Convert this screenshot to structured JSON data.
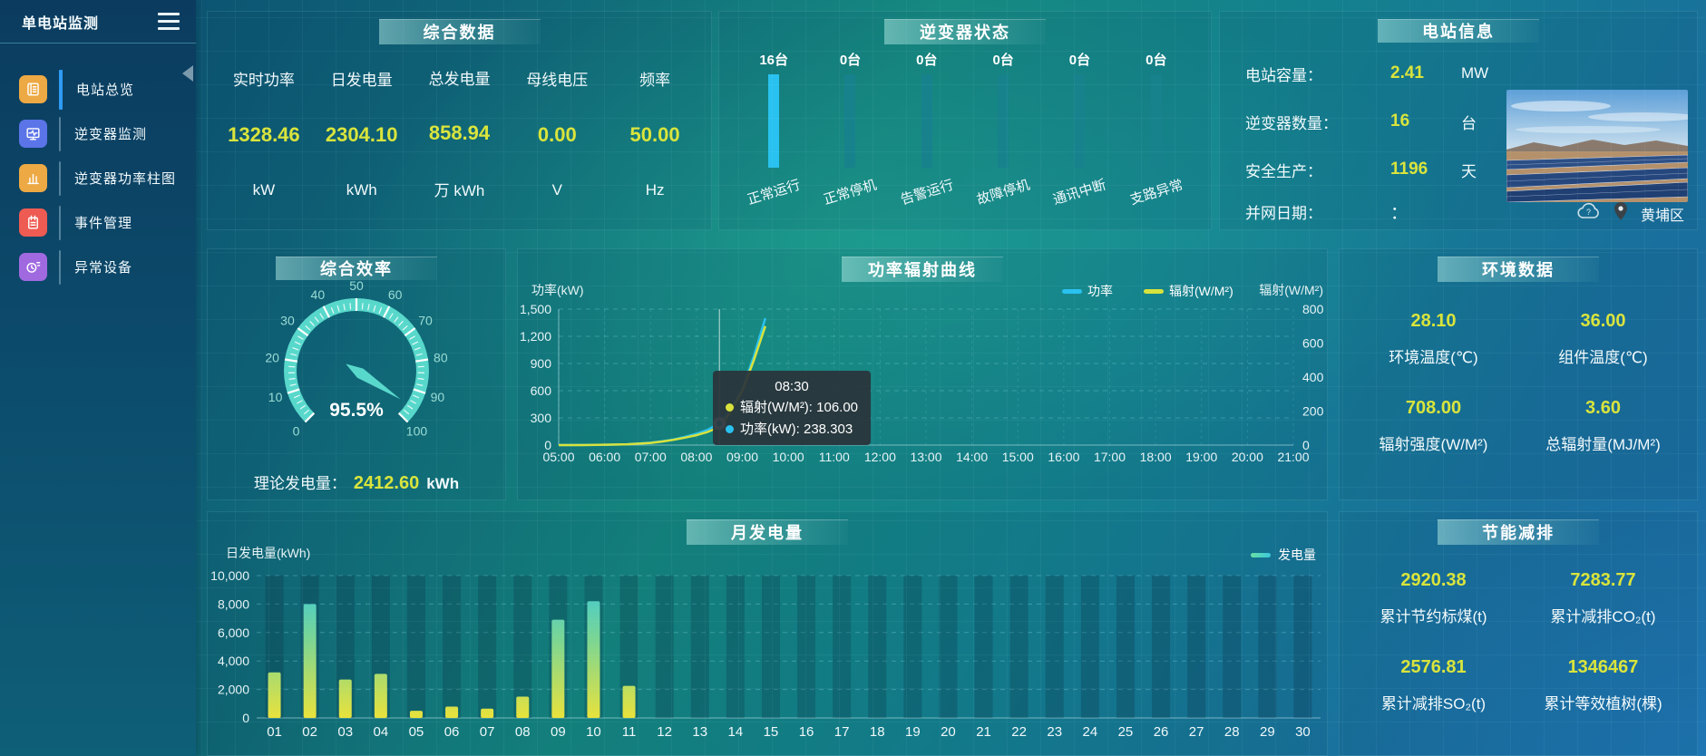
{
  "app": {
    "title": "单电站监测"
  },
  "sidebar": {
    "items": [
      {
        "label": "电站总览",
        "icon": "journal-icon",
        "icon_color": "#eda943",
        "active": true
      },
      {
        "label": "逆变器监测",
        "icon": "monitor-wave-icon",
        "icon_color": "#5b74e8",
        "active": false
      },
      {
        "label": "逆变器功率柱图",
        "icon": "bar-chart-icon",
        "icon_color": "#eda943",
        "active": false
      },
      {
        "label": "事件管理",
        "icon": "notepad-icon",
        "icon_color": "#ee5b52",
        "active": false
      },
      {
        "label": "异常设备",
        "icon": "device-alert-icon",
        "icon_color": "#a069e0",
        "active": false
      }
    ]
  },
  "panels": {
    "overview": {
      "title": "综合数据",
      "metrics": [
        {
          "label": "实时功率",
          "value": "1328.46",
          "unit": "kW"
        },
        {
          "label": "日发电量",
          "value": "2304.10",
          "unit": "kWh"
        },
        {
          "label": "总发电量",
          "value": "858.94",
          "unit": "万 kWh"
        },
        {
          "label": "母线电压",
          "value": "0.00",
          "unit": "V"
        },
        {
          "label": "频率",
          "value": "50.00",
          "unit": "Hz"
        }
      ]
    },
    "inverter_status": {
      "title": "逆变器状态"
    },
    "station_info": {
      "title": "电站信息",
      "rows": [
        {
          "label": "电站容量：",
          "value": "2.41",
          "unit": "MW"
        },
        {
          "label": "逆变器数量：",
          "value": "16",
          "unit": "台"
        },
        {
          "label": "安全生产：",
          "value": "1196",
          "unit": "天"
        }
      ],
      "grid_date": {
        "label": "并网日期：",
        "value": "："
      },
      "weather_icon": "cloud-question-icon",
      "location_icon": "map-pin-icon",
      "location": "黄埔区"
    },
    "efficiency": {
      "title": "综合效率",
      "gauge_value_label": "95.5%",
      "theory_label": "理论发电量：",
      "theory_value": "2412.60",
      "theory_unit": "kWh"
    },
    "power_radiation": {
      "title": "功率辐射曲线"
    },
    "environment": {
      "title": "环境数据",
      "metrics": [
        {
          "value": "28.10",
          "label": "环境温度(℃)"
        },
        {
          "value": "36.00",
          "label": "组件温度(℃)"
        },
        {
          "value": "708.00",
          "label": "辐射强度(W/M²)"
        },
        {
          "value": "3.60",
          "label": "总辐射量(MJ/M²)"
        }
      ]
    },
    "monthly": {
      "title": "月发电量"
    },
    "saving": {
      "title": "节能减排",
      "metrics": [
        {
          "value": "2920.38",
          "label": "累计节约标煤(t)"
        },
        {
          "value": "7283.77",
          "label": "累计减排CO₂(t)"
        },
        {
          "value": "2576.81",
          "label": "累计减排SO₂(t)"
        },
        {
          "value": "1346467",
          "label": "累计等效植树(棵)"
        }
      ]
    }
  },
  "chart_data": [
    {
      "id": "inverter-status",
      "type": "bar",
      "categories": [
        "正常运行",
        "正常停机",
        "告警运行",
        "故障停机",
        "通讯中断",
        "支路异常"
      ],
      "values": [
        16,
        0,
        0,
        0,
        0,
        0
      ],
      "values_display": [
        "16台",
        "0台",
        "0台",
        "0台",
        "0台",
        "0台"
      ],
      "active_color": "#29c1ef",
      "inactive_color": "#17828c"
    },
    {
      "id": "efficiency-gauge",
      "type": "gauge",
      "min": 0,
      "max": 100,
      "value": 95.5,
      "value_label": "95.5%",
      "tick_step": 10,
      "band_color": "#58d8cb",
      "label_color": "#9adcd4"
    },
    {
      "id": "power-radiation",
      "type": "line",
      "x_ticks": [
        "05:00",
        "06:00",
        "07:00",
        "08:00",
        "09:00",
        "10:00",
        "11:00",
        "12:00",
        "13:00",
        "14:00",
        "15:00",
        "16:00",
        "17:00",
        "18:00",
        "19:00",
        "20:00",
        "21:00"
      ],
      "x_range": [
        5,
        21
      ],
      "left_axis": {
        "title": "功率(kW)",
        "max": 1500,
        "ticks": [
          0,
          300,
          600,
          900,
          1200,
          1500
        ],
        "tick_labels": [
          "0",
          "300",
          "600",
          "900",
          "1,200",
          "1,500"
        ]
      },
      "right_axis": {
        "title": "辐射(W/M²)",
        "max": 800,
        "ticks": [
          0,
          200,
          400,
          600,
          800
        ],
        "tick_labels": [
          "0",
          "200",
          "400",
          "600",
          "800"
        ]
      },
      "legend": [
        {
          "name": "功率",
          "color": "#29c1ef"
        },
        {
          "name": "辐射(W/M²)",
          "color": "#d8e23c"
        }
      ],
      "series": [
        {
          "name": "功率",
          "axis": "left",
          "color": "#29c1ef",
          "points": [
            [
              5,
              0
            ],
            [
              5.5,
              1
            ],
            [
              6,
              3
            ],
            [
              6.5,
              9
            ],
            [
              7,
              26
            ],
            [
              7.25,
              42
            ],
            [
              7.5,
              62
            ],
            [
              7.75,
              90
            ],
            [
              8,
              125
            ],
            [
              8.25,
              170
            ],
            [
              8.5,
              238.3
            ],
            [
              8.75,
              400
            ],
            [
              9,
              620
            ],
            [
              9.25,
              980
            ],
            [
              9.5,
              1400
            ]
          ]
        },
        {
          "name": "辐射(W/M²)",
          "axis": "right",
          "color": "#d8e23c",
          "points": [
            [
              5,
              0
            ],
            [
              5.5,
              0
            ],
            [
              6,
              2
            ],
            [
              6.5,
              5
            ],
            [
              7,
              13
            ],
            [
              7.25,
              21
            ],
            [
              7.5,
              31
            ],
            [
              7.75,
              44
            ],
            [
              8,
              58
            ],
            [
              8.25,
              78
            ],
            [
              8.5,
              106
            ],
            [
              8.75,
              195
            ],
            [
              9,
              320
            ],
            [
              9.25,
              500
            ],
            [
              9.5,
              700
            ]
          ]
        }
      ],
      "tooltip": {
        "x": 8.5,
        "time": "08:30",
        "lines": [
          {
            "text": "辐射(W/M²): 106.00",
            "dot_color": "#d8e23c"
          },
          {
            "text": "功率(kW): 238.303",
            "dot_color": "#29c1ef"
          }
        ]
      }
    },
    {
      "id": "monthly-generation",
      "type": "bar",
      "ylabel": "日发电量(kWh)",
      "legend": "发电量",
      "categories": [
        "01",
        "02",
        "03",
        "04",
        "05",
        "06",
        "07",
        "08",
        "09",
        "10",
        "11",
        "12",
        "13",
        "14",
        "15",
        "16",
        "17",
        "18",
        "19",
        "20",
        "21",
        "22",
        "23",
        "24",
        "25",
        "26",
        "27",
        "28",
        "29",
        "30"
      ],
      "values": [
        3200,
        8000,
        2700,
        3100,
        500,
        800,
        650,
        1500,
        6900,
        8200,
        2250,
        0,
        0,
        0,
        0,
        0,
        0,
        0,
        0,
        0,
        0,
        0,
        0,
        0,
        0,
        0,
        0,
        0,
        0,
        0
      ],
      "ylim": [
        0,
        10000
      ],
      "yticks": [
        0,
        2000,
        4000,
        6000,
        8000,
        10000
      ],
      "ytick_labels": [
        "0",
        "2,000",
        "4,000",
        "6,000",
        "8,000",
        "10,000"
      ],
      "bar_gradient": [
        "#e8e23c",
        "#7bd694",
        "#38c8dc"
      ]
    }
  ]
}
